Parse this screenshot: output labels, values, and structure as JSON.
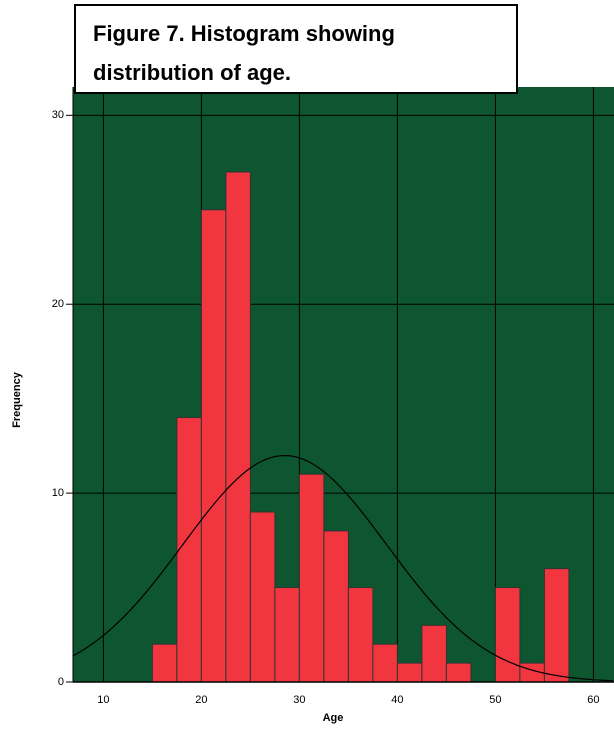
{
  "chart_data": {
    "type": "histogram",
    "title": [
      "Figure 7. Histogram showing",
      "distribution of age."
    ],
    "xlabel": "Age",
    "ylabel": "Frequency",
    "bins": [
      15,
      17.5,
      20,
      22.5,
      25,
      27.5,
      30,
      32.5,
      35,
      37.5,
      40,
      42.5,
      45,
      47.5,
      50,
      52.5,
      55,
      57.5
    ],
    "values": [
      2,
      14,
      25,
      27,
      9,
      5,
      11,
      8,
      5,
      2,
      1,
      3,
      1,
      0,
      5,
      1,
      6
    ],
    "color": "#f2363f",
    "background": "#0d5630",
    "curve": {
      "mean": 28.5,
      "sd": 10.4
    },
    "xlim": [
      6.9,
      62.1
    ],
    "xticks": [
      10,
      20,
      30,
      40,
      50,
      60
    ],
    "ylim": [
      0,
      31.5
    ],
    "yticks": [
      0,
      10,
      20,
      30
    ],
    "grid": true
  }
}
